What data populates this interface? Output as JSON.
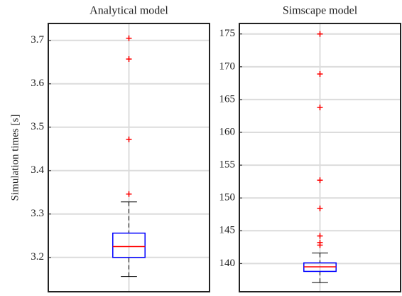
{
  "chart_data": [
    {
      "type": "box",
      "title": "Analytical model",
      "ylabel": "Simulation times [s]",
      "whisker_low": 3.156,
      "q1": 3.2,
      "median": 3.225,
      "q3": 3.256,
      "whisker_high": 3.328,
      "outliers": [
        3.346,
        3.472,
        3.657,
        3.705
      ],
      "box_color": "#0000ff",
      "median_color": "#ff0000",
      "outlier_color": "#ff0000",
      "ylim": [
        3.121,
        3.739
      ],
      "yticks": [
        3.2,
        3.3,
        3.4,
        3.5,
        3.6,
        3.7
      ],
      "grid": true
    },
    {
      "type": "box",
      "title": "Simscape model",
      "whisker_low": 137.1,
      "q1": 138.8,
      "median": 139.5,
      "q3": 140.1,
      "whisker_high": 141.6,
      "outliers": [
        142.8,
        143.2,
        144.2,
        148.4,
        152.7,
        163.8,
        168.9,
        175
      ],
      "box_color": "#0000ff",
      "median_color": "#ff0000",
      "outlier_color": "#ff0000",
      "ylim": [
        135.7,
        176.6
      ],
      "yticks": [
        140,
        145,
        150,
        155,
        160,
        165,
        170,
        175
      ],
      "grid": true
    }
  ]
}
